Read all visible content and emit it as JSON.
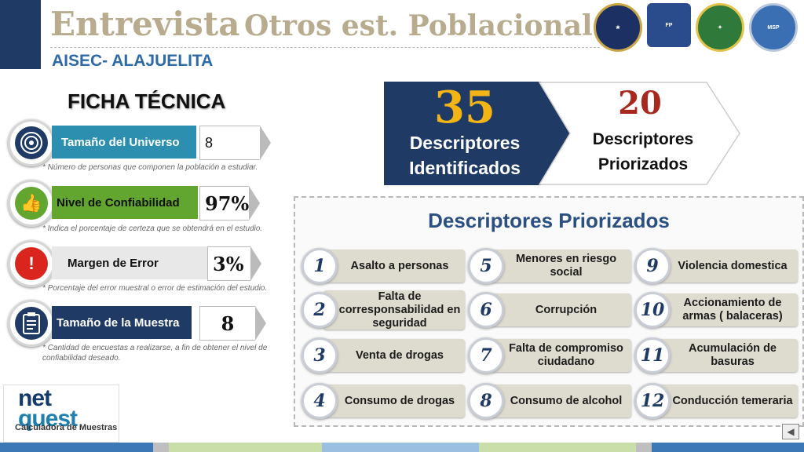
{
  "header": {
    "title_part1": "Entrevista",
    "title_part2": "Otros est. Poblacionales",
    "subtitle": "AISEC- ALAJUELITA"
  },
  "logos": [
    {
      "name": "us-embassy-seal",
      "text": "UNITED STATES OF AMERICA EMBASSY"
    },
    {
      "name": "fuerza-publica-shield",
      "text": "FUERZA PUBLICA"
    },
    {
      "name": "police-crest",
      "text": "DIOS Y PATRIA"
    },
    {
      "name": "msp-seal",
      "text": "MSP"
    }
  ],
  "ficha": {
    "title": "FICHA TÉCNICA",
    "items": [
      {
        "label": "Tamaño del Universo",
        "value": "8",
        "note": "* Número de personas que componen la población a estudiar."
      },
      {
        "label": "Nivel de Confiabilidad",
        "value": "97%",
        "note": "* Indica el porcentaje de certeza que se obtendrá en el estudio."
      },
      {
        "label": "Margen de Error",
        "value": "3%",
        "note": "* Porcentaje del error muestral o error de estimación del estudio."
      },
      {
        "label": "Tamaño de la Muestra",
        "value": "8",
        "note": "* Cantidad de encuestas a realizarse, a fin de obtener el nivel de confiabilidad deseado."
      }
    ]
  },
  "netquest": {
    "logo_top": "net",
    "logo_bottom": "quest",
    "caption": "Calculadora de Muestras"
  },
  "stats": {
    "identified": {
      "number": "35",
      "line1": "Descriptores",
      "line2": "Identificados"
    },
    "prioritized": {
      "number": "20",
      "line1": "Descriptores",
      "line2": "Priorizados"
    }
  },
  "descriptores": {
    "title": "Descriptores Priorizados",
    "items": [
      {
        "n": "1",
        "text": "Asalto a personas"
      },
      {
        "n": "2",
        "text": "Falta de corresponsabilidad en seguridad"
      },
      {
        "n": "3",
        "text": "Venta de drogas"
      },
      {
        "n": "4",
        "text": "Consumo de drogas"
      },
      {
        "n": "5",
        "text": "Menores en riesgo social"
      },
      {
        "n": "6",
        "text": "Corrupción"
      },
      {
        "n": "7",
        "text": "Falta de compromiso ciudadano"
      },
      {
        "n": "8",
        "text": "Consumo de alcohol"
      },
      {
        "n": "9",
        "text": "Violencia domestica"
      },
      {
        "n": "10",
        "text": "Accionamiento de armas ( balaceras)"
      },
      {
        "n": "11",
        "text": "Acumulación de basuras"
      },
      {
        "n": "12",
        "text": "Conducción temeraria"
      }
    ]
  },
  "colors": {
    "navy": "#1f3a64",
    "teal_label": "#2c8fb0",
    "green_label": "#63a62f",
    "red_icon": "#d9251d",
    "beige_title": "#b8ab8e",
    "prior_red": "#a8281e",
    "gold_number": "#f2b515"
  }
}
